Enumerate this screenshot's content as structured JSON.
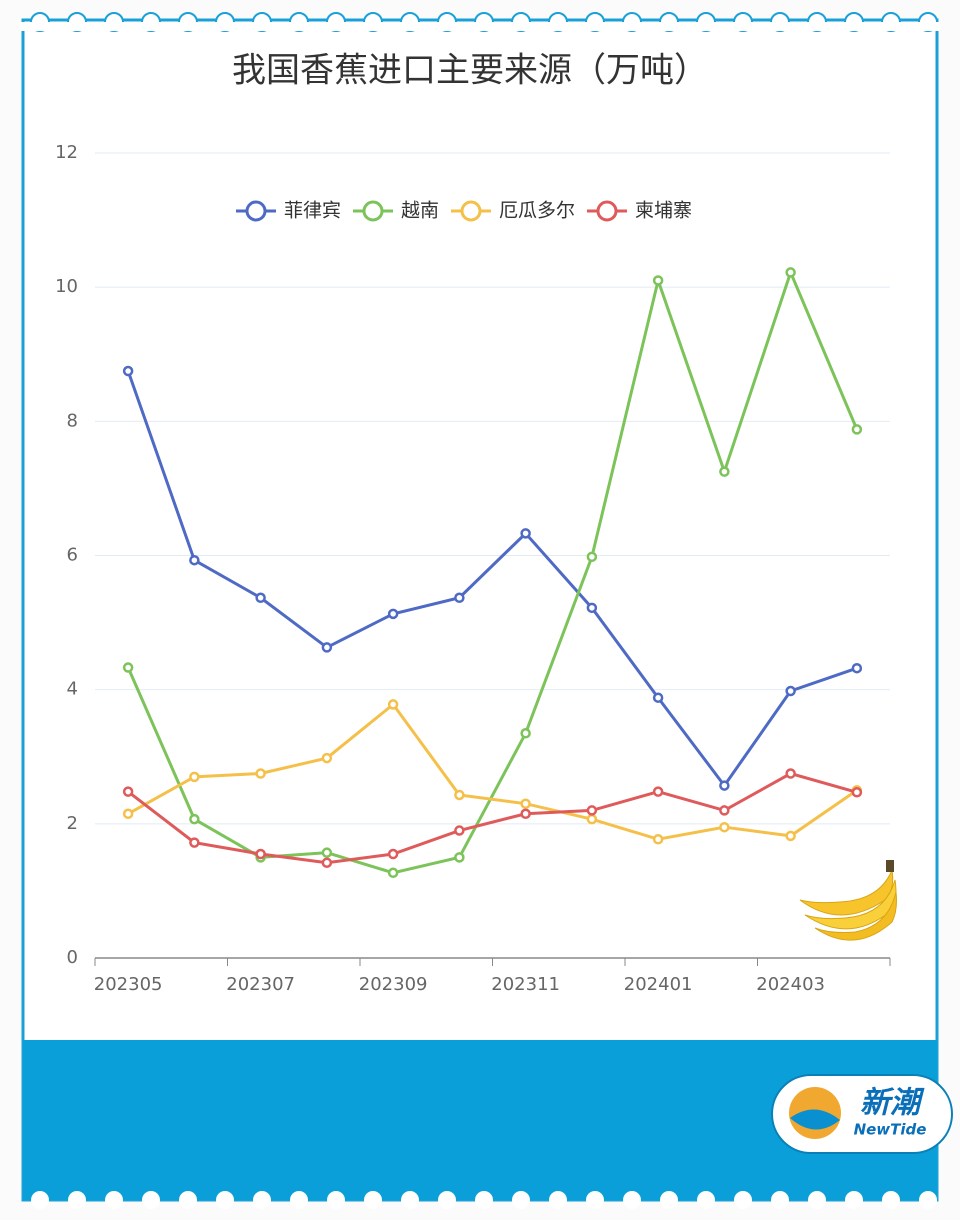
{
  "chart_data": {
    "type": "line",
    "title": "我国香蕉进口主要来源（万吨）",
    "categories": [
      "202305",
      null,
      "202307",
      null,
      "202309",
      null,
      "202311",
      null,
      "202401",
      null,
      "202403",
      null
    ],
    "series": [
      {
        "name": "菲律宾",
        "color": "#4e6ac4",
        "values": [
          8.75,
          5.93,
          5.37,
          4.63,
          5.13,
          5.37,
          6.33,
          5.22,
          3.88,
          2.57,
          3.98,
          4.32
        ]
      },
      {
        "name": "越南",
        "color": "#7cc35a",
        "values": [
          4.33,
          2.07,
          1.5,
          1.57,
          1.27,
          1.5,
          3.35,
          5.98,
          10.1,
          7.25,
          10.22,
          7.88
        ]
      },
      {
        "name": "厄瓜多尔",
        "color": "#f5c04a",
        "values": [
          2.15,
          2.7,
          2.75,
          2.98,
          3.78,
          2.43,
          2.3,
          2.07,
          1.77,
          1.95,
          1.82,
          2.5
        ]
      },
      {
        "name": "柬埔寨",
        "color": "#df5a5a",
        "values": [
          2.48,
          1.72,
          1.55,
          1.42,
          1.55,
          1.9,
          2.15,
          2.2,
          2.48,
          2.2,
          2.75,
          2.47
        ]
      }
    ],
    "ylim": [
      0,
      12
    ],
    "yticks": [
      0,
      2,
      4,
      6,
      8,
      10,
      12
    ],
    "grid": true,
    "legend": "top"
  },
  "brand": {
    "name": "新潮",
    "subtitle": "NewTide"
  }
}
